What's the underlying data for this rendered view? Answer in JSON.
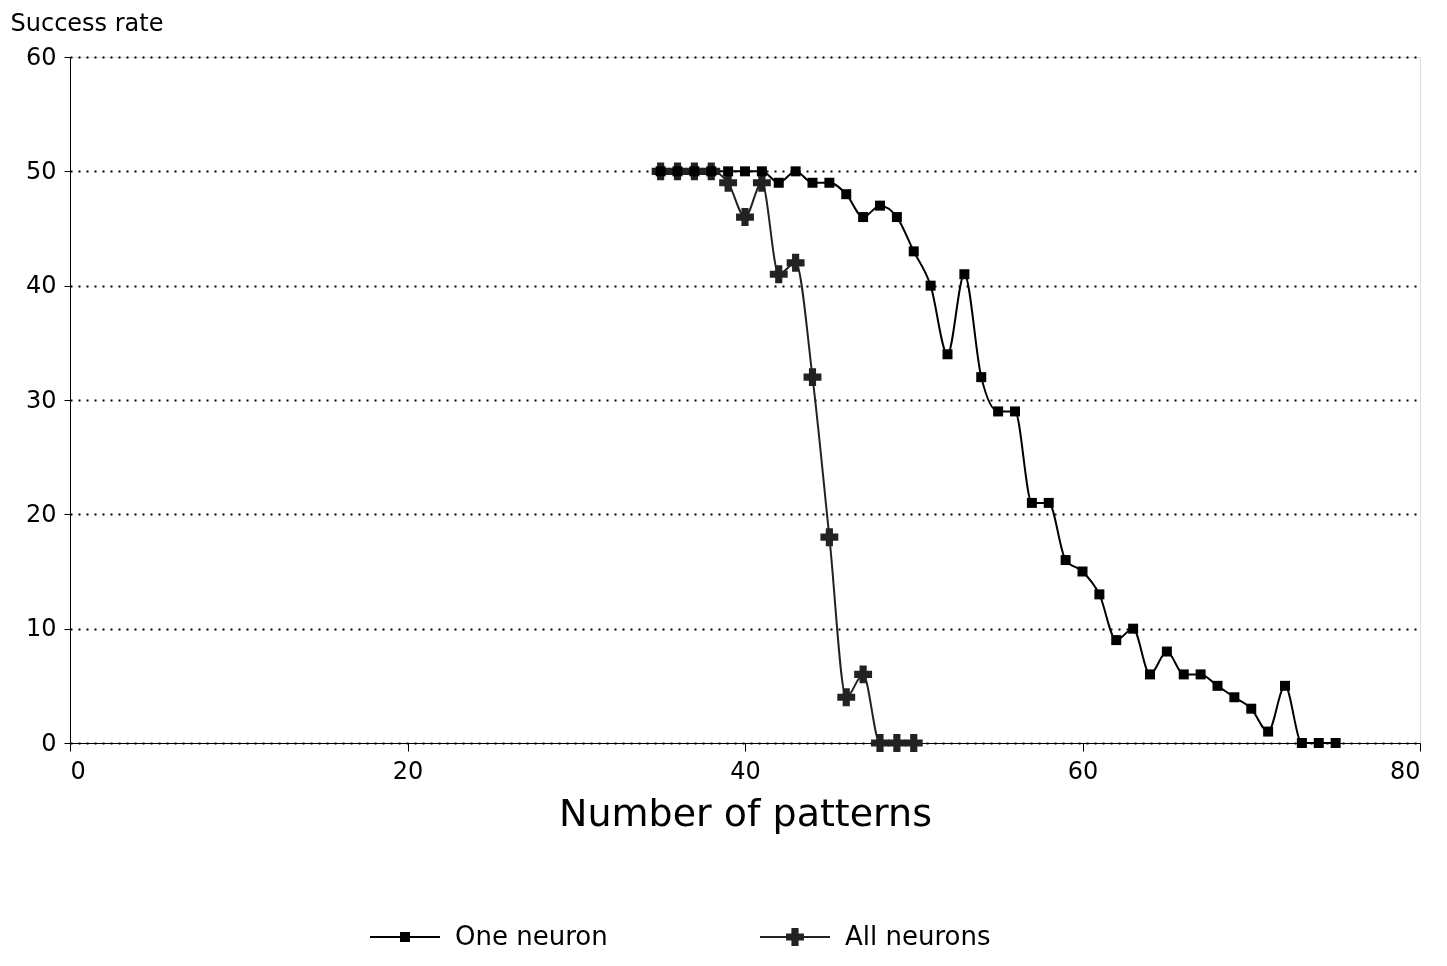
{
  "chart_data": {
    "type": "line",
    "xlabel": "Number of patterns",
    "ylabel": "Success rate",
    "xlim": [
      0,
      80
    ],
    "xticks": [
      0,
      20,
      40,
      60,
      80
    ],
    "ylim": [
      0,
      60
    ],
    "yticks": [
      0,
      10,
      20,
      30,
      40,
      50,
      60
    ],
    "grid": "y",
    "legend": "bottom",
    "series": [
      {
        "name": "One neuron",
        "color": "#000000",
        "marker": "square",
        "x": [
          35,
          36,
          37,
          38,
          39,
          40,
          41,
          42,
          43,
          44,
          45,
          46,
          47,
          48,
          49,
          50,
          51,
          52,
          53,
          54,
          55,
          56,
          57,
          58,
          59,
          60,
          61,
          62,
          63,
          64,
          65,
          66,
          67,
          68,
          69,
          70,
          71,
          72,
          73,
          74,
          75
        ],
        "values": [
          50,
          50,
          50,
          50,
          50,
          50,
          50,
          49,
          50,
          49,
          49,
          48,
          46,
          47,
          46,
          43,
          40,
          34,
          41,
          32,
          29,
          29,
          21,
          21,
          16,
          15,
          13,
          9,
          10,
          6,
          8,
          6,
          6,
          5,
          4,
          3,
          1,
          5,
          0,
          0,
          0
        ]
      },
      {
        "name": "All neurons",
        "color": "#222222",
        "marker": "cross",
        "x": [
          35,
          36,
          37,
          38,
          39,
          40,
          41,
          42,
          43,
          44,
          45,
          46,
          47,
          48,
          49,
          50
        ],
        "values": [
          50,
          50,
          50,
          50,
          49,
          46,
          49,
          41,
          42,
          32,
          18,
          4,
          6,
          0,
          0,
          0
        ]
      }
    ]
  }
}
